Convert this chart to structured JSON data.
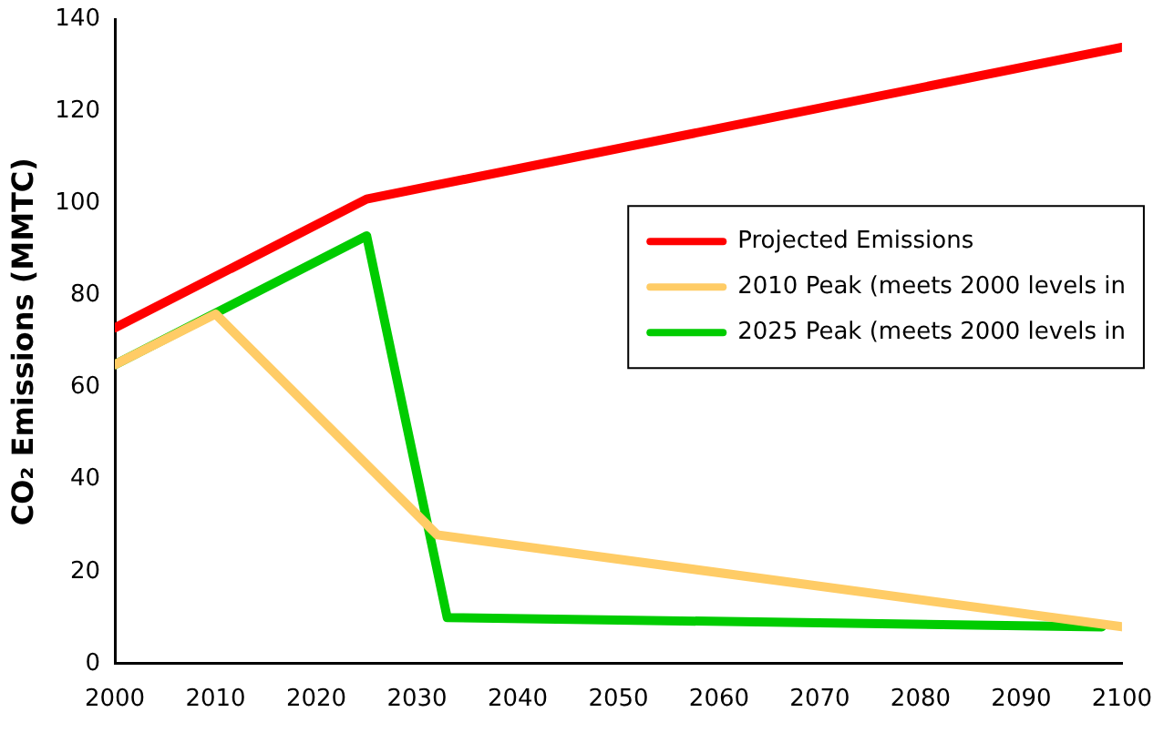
{
  "chart_data": {
    "type": "line",
    "ylabel": "CO₂ Emissions (MMTC)",
    "xlim": [
      2000,
      2100
    ],
    "xticks": [
      2000,
      2010,
      2020,
      2030,
      2040,
      2050,
      2060,
      2070,
      2080,
      2090,
      2100
    ],
    "ylim": [
      0,
      140
    ],
    "yticks": [
      0,
      20,
      40,
      60,
      80,
      100,
      120,
      140
    ],
    "grid": false,
    "legend": "right",
    "marker": "none",
    "line_style": "solid",
    "series": [
      {
        "name": "Projected Emissions",
        "color": "#ff0000",
        "x": [
          2000,
          2025,
          2100
        ],
        "values": [
          73,
          101,
          134
        ]
      },
      {
        "name": "2010 Peak (meets 2000 levels in",
        "color": "#ffcc66",
        "x": [
          2000,
          2010,
          2032,
          2100
        ],
        "values": [
          65,
          76,
          28,
          8
        ]
      },
      {
        "name": "2025 Peak (meets 2000 levels in",
        "color": "#00cc00",
        "x": [
          2000,
          2025,
          2033,
          2098
        ],
        "values": [
          65,
          93,
          10,
          8
        ]
      }
    ]
  }
}
